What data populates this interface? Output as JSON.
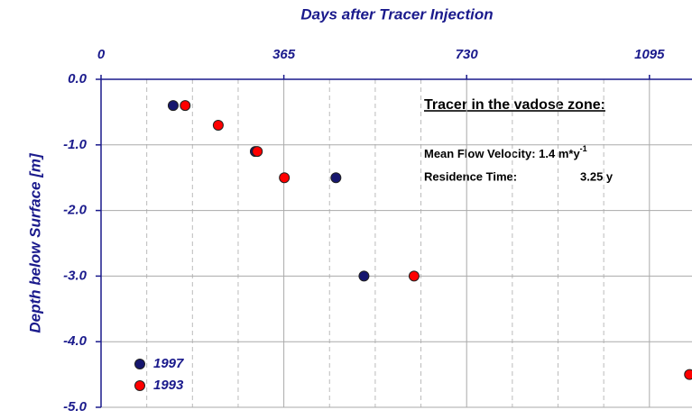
{
  "chart_data": {
    "type": "scatter",
    "xlabel": "Days after Tracer Injection",
    "ylabel": "Depth below Surface [m]",
    "xlim": [
      0,
      1180
    ],
    "ylim": [
      -5,
      0
    ],
    "xticks": [
      0,
      365,
      730,
      1095
    ],
    "xminorticks": [
      91.25,
      182.5,
      273.75,
      456.25,
      547.5,
      638.75,
      821.25,
      912.5,
      1003.75
    ],
    "yticks": [
      {
        "value": 0,
        "label": "0.0"
      },
      {
        "value": -1,
        "label": "-1.0"
      },
      {
        "value": -2,
        "label": "-2.0"
      },
      {
        "value": -3,
        "label": "-3.0"
      },
      {
        "value": -4,
        "label": "-4.0"
      },
      {
        "value": -5,
        "label": "-5.0"
      }
    ],
    "grid": true,
    "legend": "lower left",
    "series": [
      {
        "name": "1997",
        "color": "#16166e",
        "x": [
          144,
          308,
          469,
          525
        ],
        "values": [
          -0.4,
          -1.1,
          -1.5,
          -3.0
        ]
      },
      {
        "name": "1993",
        "color": "#ff0000",
        "x": [
          168,
          234,
          312,
          366,
          625,
          1175
        ],
        "values": [
          -0.4,
          -0.7,
          -1.1,
          -1.5,
          -3.0,
          -4.5
        ]
      }
    ],
    "annotation": {
      "title": "Tracer in the vadose zone:",
      "velocity_label": "Mean Flow Velocity: 1.4 m*y",
      "velocity_exponent": "-1",
      "residence_label": "Residence Time:",
      "residence_value": "3.25 y"
    }
  }
}
